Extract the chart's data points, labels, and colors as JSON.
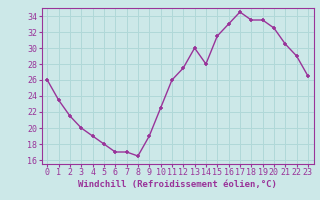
{
  "x": [
    0,
    1,
    2,
    3,
    4,
    5,
    6,
    7,
    8,
    9,
    10,
    11,
    12,
    13,
    14,
    15,
    16,
    17,
    18,
    19,
    20,
    21,
    22,
    23
  ],
  "y": [
    26,
    23.5,
    21.5,
    20,
    19,
    18,
    17,
    17,
    16.5,
    19,
    22.5,
    26,
    27.5,
    30,
    28,
    31.5,
    33,
    34.5,
    33.5,
    33.5,
    32.5,
    30.5,
    29,
    26.5
  ],
  "line_color": "#993399",
  "marker": "+",
  "bg_color": "#cce8e8",
  "grid_color": "#b0d8d8",
  "xlabel": "Windchill (Refroidissement éolien,°C)",
  "xlabel_color": "#993399",
  "tick_color": "#993399",
  "label_color": "#993399",
  "ylim": [
    15.5,
    35
  ],
  "yticks": [
    16,
    18,
    20,
    22,
    24,
    26,
    28,
    30,
    32,
    34
  ],
  "xlim": [
    -0.5,
    23.5
  ],
  "xticks": [
    0,
    1,
    2,
    3,
    4,
    5,
    6,
    7,
    8,
    9,
    10,
    11,
    12,
    13,
    14,
    15,
    16,
    17,
    18,
    19,
    20,
    21,
    22,
    23
  ],
  "xtick_labels": [
    "0",
    "1",
    "2",
    "3",
    "4",
    "5",
    "6",
    "7",
    "8",
    "9",
    "10",
    "11",
    "12",
    "13",
    "14",
    "15",
    "16",
    "17",
    "18",
    "19",
    "20",
    "21",
    "22",
    "23"
  ],
  "line_width": 1.0,
  "marker_size": 3.5,
  "tick_fontsize": 6.0,
  "xlabel_fontsize": 6.5
}
